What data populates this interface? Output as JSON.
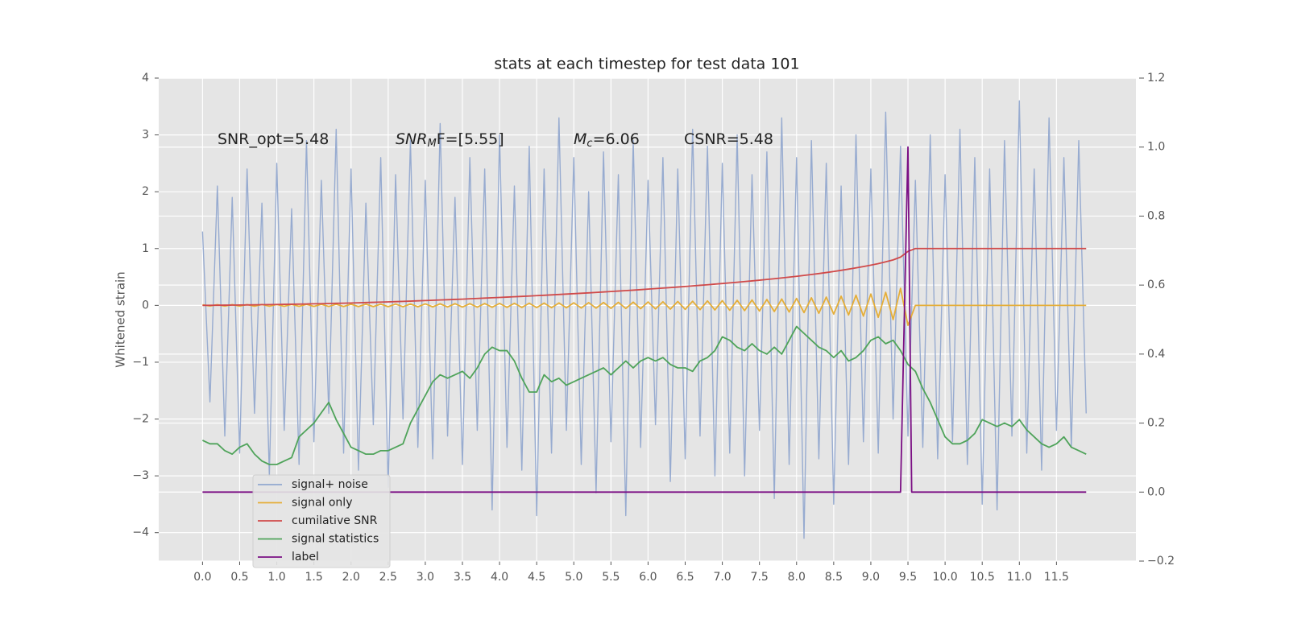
{
  "chart_data": {
    "type": "line",
    "title": "stats at each timestep for test data 101",
    "y_label": "Whitened strain",
    "xlim": [
      -0.59,
      12.57
    ],
    "ylim": [
      -4.5,
      4
    ],
    "y2lim": [
      -0.2,
      1.2
    ],
    "grid": true,
    "legend": "lower left",
    "xticks": [
      {
        "value": 0,
        "label": "0.0"
      },
      {
        "value": 0.5,
        "label": "0.5"
      },
      {
        "value": 1,
        "label": "1.0"
      },
      {
        "value": 1.5,
        "label": "1.5"
      },
      {
        "value": 2,
        "label": "2.0"
      },
      {
        "value": 2.5,
        "label": "2.5"
      },
      {
        "value": 3,
        "label": "3.0"
      },
      {
        "value": 3.5,
        "label": "3.5"
      },
      {
        "value": 4,
        "label": "4.0"
      },
      {
        "value": 4.5,
        "label": "4.5"
      },
      {
        "value": 5,
        "label": "5.0"
      },
      {
        "value": 5.5,
        "label": "5.5"
      },
      {
        "value": 6,
        "label": "6.0"
      },
      {
        "value": 6.5,
        "label": "6.5"
      },
      {
        "value": 7,
        "label": "7.0"
      },
      {
        "value": 7.5,
        "label": "7.5"
      },
      {
        "value": 8,
        "label": "8.0"
      },
      {
        "value": 8.5,
        "label": "8.5"
      },
      {
        "value": 9,
        "label": "9.0"
      },
      {
        "value": 9.5,
        "label": "9.5"
      },
      {
        "value": 10,
        "label": "10.0"
      },
      {
        "value": 10.5,
        "label": "10.5"
      },
      {
        "value": 11,
        "label": "11.0"
      },
      {
        "value": 11.5,
        "label": "11.5"
      }
    ],
    "yticks": [
      {
        "value": -4,
        "label": "−4"
      },
      {
        "value": -3,
        "label": "−3"
      },
      {
        "value": -2,
        "label": "−2"
      },
      {
        "value": -1,
        "label": "−1"
      },
      0,
      1,
      2,
      3,
      4
    ],
    "y2ticks": [
      {
        "value": -0.2,
        "label": "−0.2"
      },
      {
        "value": 0,
        "label": "0.0"
      },
      0.2,
      0.4,
      0.6,
      0.8,
      {
        "value": 1,
        "label": "1.0"
      },
      1.2
    ],
    "annotations": [
      {
        "text": "SNR_opt=5.48"
      },
      {
        "text": "SNR",
        "sub": "M",
        "after": "F=[5.55]"
      },
      {
        "text": "M",
        "sub": "c",
        "after": "=6.06"
      },
      {
        "text": "CSNR=5.48"
      }
    ],
    "x": [
      0,
      0.1,
      0.2,
      0.3,
      0.4,
      0.5,
      0.6,
      0.7,
      0.8,
      0.9,
      1,
      1.1,
      1.2,
      1.3,
      1.4,
      1.5,
      1.6,
      1.7,
      1.8,
      1.9,
      2,
      2.1,
      2.2,
      2.3,
      2.4,
      2.5,
      2.6,
      2.7,
      2.8,
      2.9,
      3,
      3.1,
      3.2,
      3.3,
      3.4,
      3.5,
      3.6,
      3.7,
      3.8,
      3.9,
      4,
      4.1,
      4.2,
      4.3,
      4.4,
      4.5,
      4.6,
      4.7,
      4.8,
      4.9,
      5,
      5.1,
      5.2,
      5.3,
      5.4,
      5.5,
      5.6,
      5.7,
      5.8,
      5.9,
      6,
      6.1,
      6.2,
      6.3,
      6.4,
      6.5,
      6.6,
      6.7,
      6.8,
      6.9,
      7,
      7.1,
      7.2,
      7.3,
      7.4,
      7.5,
      7.6,
      7.7,
      7.8,
      7.9,
      8,
      8.1,
      8.2,
      8.3,
      8.4,
      8.5,
      8.6,
      8.7,
      8.8,
      8.9,
      9,
      9.1,
      9.2,
      9.3,
      9.4,
      9.5,
      9.6,
      9.7,
      9.8,
      9.9,
      10,
      10.1,
      10.2,
      10.3,
      10.4,
      10.5,
      10.6,
      10.7,
      10.8,
      10.9,
      11,
      11.1,
      11.2,
      11.3,
      11.4,
      11.5,
      11.6,
      11.7,
      11.8,
      11.9
    ],
    "series": [
      {
        "name": "signal+ noise",
        "color": "#92a8cf",
        "axis": "y",
        "values": [
          1.3,
          -1.7,
          2.1,
          -2.3,
          1.9,
          -2.6,
          2.4,
          -1.9,
          1.8,
          -3.0,
          2.5,
          -2.2,
          1.7,
          -2.8,
          2.9,
          -2.4,
          2.2,
          -1.9,
          3.1,
          -2.6,
          2.4,
          -2.9,
          1.8,
          -2.1,
          2.6,
          -3.2,
          2.3,
          -2.0,
          2.9,
          -2.5,
          2.2,
          -2.7,
          3.2,
          -2.3,
          1.9,
          -2.8,
          2.6,
          -2.2,
          2.4,
          -3.6,
          3.0,
          -2.5,
          2.1,
          -2.9,
          2.8,
          -3.7,
          2.4,
          -2.6,
          3.3,
          -2.2,
          2.6,
          -2.8,
          2.0,
          -3.3,
          2.7,
          -2.4,
          2.3,
          -3.7,
          2.9,
          -2.5,
          2.2,
          -2.1,
          2.6,
          -3.1,
          2.4,
          -2.7,
          3.1,
          -2.3,
          2.8,
          -3.0,
          2.5,
          -2.6,
          3.0,
          -3.0,
          2.3,
          -2.2,
          2.7,
          -3.4,
          3.3,
          -2.8,
          2.6,
          -4.1,
          2.9,
          -2.7,
          2.5,
          -3.5,
          2.1,
          -2.8,
          3.0,
          -2.4,
          2.4,
          -2.6,
          3.4,
          -2.0,
          2.8,
          -2.3,
          2.2,
          -2.5,
          3.0,
          -2.7,
          2.3,
          -2.4,
          3.1,
          -2.8,
          2.6,
          -3.5,
          2.4,
          -3.6,
          2.9,
          -2.3,
          3.6,
          -2.6,
          2.4,
          -2.9,
          3.3,
          -2.2,
          2.6,
          -2.5,
          2.9,
          -1.9
        ]
      },
      {
        "name": "signal only",
        "color": "#e5ae38",
        "axis": "y",
        "values": [
          0.01,
          -0.01,
          0.012,
          -0.012,
          0.013,
          -0.013,
          0.014,
          -0.014,
          0.015,
          -0.015,
          0.016,
          -0.016,
          0.017,
          -0.017,
          0.018,
          -0.018,
          0.019,
          -0.019,
          0.02,
          -0.02,
          0.021,
          -0.021,
          0.022,
          -0.022,
          0.023,
          -0.023,
          0.024,
          -0.024,
          0.025,
          -0.025,
          0.027,
          -0.027,
          0.028,
          -0.028,
          0.03,
          -0.03,
          0.031,
          -0.031,
          0.033,
          -0.033,
          0.035,
          -0.035,
          0.037,
          -0.037,
          0.039,
          -0.039,
          0.041,
          -0.041,
          0.043,
          -0.043,
          0.045,
          -0.046,
          0.048,
          -0.049,
          0.051,
          -0.052,
          0.054,
          -0.055,
          0.057,
          -0.058,
          0.06,
          -0.062,
          0.064,
          -0.066,
          0.068,
          -0.07,
          0.073,
          -0.075,
          0.078,
          -0.08,
          0.083,
          -0.086,
          0.089,
          -0.092,
          0.096,
          -0.1,
          0.104,
          -0.108,
          0.112,
          -0.117,
          0.122,
          -0.127,
          0.133,
          -0.139,
          0.146,
          -0.153,
          0.161,
          -0.17,
          0.18,
          -0.19,
          0.2,
          -0.21,
          0.23,
          -0.25,
          0.3,
          -0.35,
          0,
          0,
          0,
          0,
          0,
          0,
          0,
          0,
          0,
          0,
          0,
          0,
          0,
          0,
          0,
          0,
          0,
          0,
          0,
          0,
          0,
          0,
          0,
          0
        ]
      },
      {
        "name": "cumilative SNR",
        "color": "#d04a4a",
        "axis": "y",
        "values": [
          0,
          0.001,
          0.002,
          0.004,
          0.005,
          0.007,
          0.008,
          0.01,
          0.012,
          0.014,
          0.016,
          0.018,
          0.02,
          0.022,
          0.025,
          0.028,
          0.03,
          0.033,
          0.036,
          0.039,
          0.042,
          0.046,
          0.05,
          0.054,
          0.058,
          0.062,
          0.066,
          0.07,
          0.075,
          0.08,
          0.085,
          0.09,
          0.095,
          0.1,
          0.105,
          0.11,
          0.116,
          0.122,
          0.128,
          0.134,
          0.14,
          0.146,
          0.152,
          0.158,
          0.164,
          0.171,
          0.178,
          0.185,
          0.192,
          0.199,
          0.206,
          0.213,
          0.22,
          0.228,
          0.236,
          0.244,
          0.252,
          0.26,
          0.268,
          0.277,
          0.286,
          0.295,
          0.304,
          0.313,
          0.323,
          0.333,
          0.343,
          0.353,
          0.363,
          0.374,
          0.385,
          0.396,
          0.407,
          0.419,
          0.431,
          0.443,
          0.456,
          0.469,
          0.483,
          0.497,
          0.512,
          0.527,
          0.543,
          0.56,
          0.578,
          0.597,
          0.617,
          0.638,
          0.66,
          0.683,
          0.708,
          0.735,
          0.766,
          0.8,
          0.85,
          0.95,
          1,
          1,
          1,
          1,
          1,
          1,
          1,
          1,
          1,
          1,
          1,
          1,
          1,
          1,
          1,
          1,
          1,
          1,
          1,
          1,
          1,
          1,
          1,
          1
        ]
      },
      {
        "name": "signal statistics",
        "color": "#4fa35a",
        "axis": "y2",
        "values": [
          0.15,
          0.14,
          0.14,
          0.12,
          0.11,
          0.13,
          0.14,
          0.11,
          0.09,
          0.08,
          0.08,
          0.09,
          0.1,
          0.16,
          0.18,
          0.2,
          0.23,
          0.26,
          0.21,
          0.17,
          0.13,
          0.12,
          0.11,
          0.11,
          0.12,
          0.12,
          0.13,
          0.14,
          0.2,
          0.24,
          0.28,
          0.32,
          0.34,
          0.33,
          0.34,
          0.35,
          0.33,
          0.36,
          0.4,
          0.42,
          0.41,
          0.41,
          0.38,
          0.33,
          0.29,
          0.29,
          0.34,
          0.32,
          0.33,
          0.31,
          0.32,
          0.33,
          0.34,
          0.35,
          0.36,
          0.34,
          0.36,
          0.38,
          0.36,
          0.38,
          0.39,
          0.38,
          0.39,
          0.37,
          0.36,
          0.36,
          0.35,
          0.38,
          0.39,
          0.41,
          0.45,
          0.44,
          0.42,
          0.41,
          0.43,
          0.41,
          0.4,
          0.42,
          0.4,
          0.44,
          0.48,
          0.46,
          0.44,
          0.42,
          0.41,
          0.39,
          0.41,
          0.38,
          0.39,
          0.41,
          0.44,
          0.45,
          0.43,
          0.44,
          0.41,
          0.37,
          0.35,
          0.3,
          0.26,
          0.21,
          0.16,
          0.14,
          0.14,
          0.15,
          0.17,
          0.21,
          0.2,
          0.19,
          0.2,
          0.19,
          0.21,
          0.18,
          0.16,
          0.14,
          0.13,
          0.14,
          0.16,
          0.13,
          0.12,
          0.11
        ]
      },
      {
        "name": "label",
        "color": "#7b0f84",
        "axis": "y2",
        "x": [
          0,
          9.4,
          9.5,
          9.55,
          11.9
        ],
        "values": [
          0,
          0,
          1,
          0,
          0
        ]
      }
    ]
  }
}
